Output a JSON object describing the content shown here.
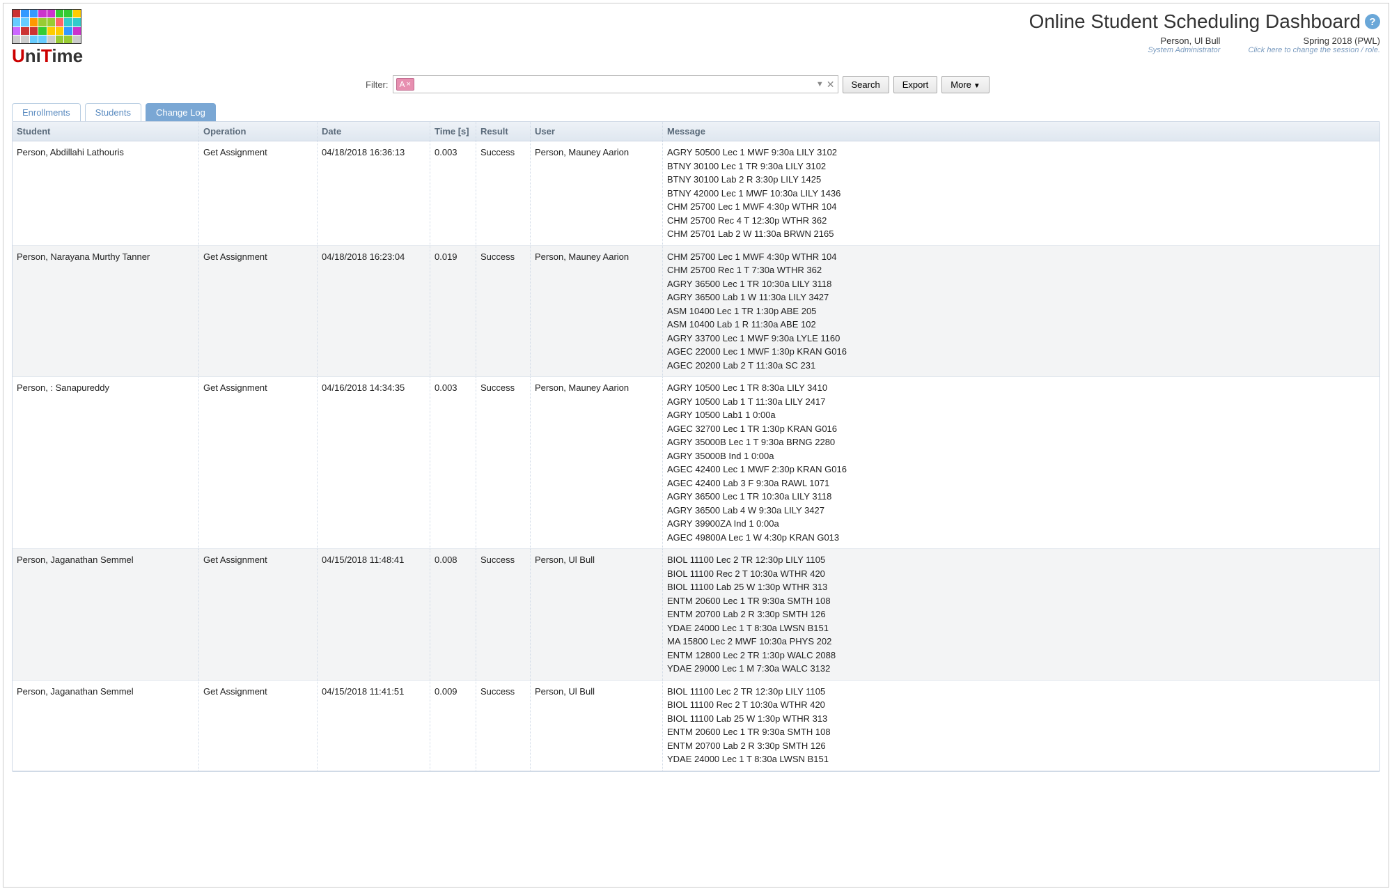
{
  "header": {
    "page_title": "Online Student Scheduling Dashboard",
    "user_name": "Person, Ul Bull",
    "user_role": "System Administrator",
    "session": "Spring 2018 (PWL)",
    "session_hint": "Click here to change the session / role."
  },
  "filter": {
    "label": "Filter:",
    "chip_label": "A",
    "search_btn": "Search",
    "export_btn": "Export",
    "more_btn": "More"
  },
  "tabs": {
    "enrollments": "Enrollments",
    "students": "Students",
    "change_log": "Change Log"
  },
  "columns": {
    "student": "Student",
    "operation": "Operation",
    "date": "Date",
    "time": "Time [s]",
    "result": "Result",
    "user": "User",
    "message": "Message"
  },
  "rows": [
    {
      "student": "Person, Abdillahi Lathouris",
      "operation": "Get Assignment",
      "date": "04/18/2018 16:36:13",
      "time": "0.003",
      "result": "Success",
      "user": "Person, Mauney Aarion",
      "messages": [
        "AGRY 50500 Lec 1 MWF 9:30a LILY 3102",
        "BTNY 30100 Lec 1 TR 9:30a LILY 3102",
        "BTNY 30100 Lab 2 R 3:30p LILY 1425",
        "BTNY 42000 Lec 1 MWF 10:30a LILY 1436",
        "CHM 25700 Lec 1 MWF 4:30p WTHR 104",
        "CHM 25700 Rec 4 T 12:30p WTHR 362",
        "CHM 25701 Lab 2 W 11:30a BRWN 2165"
      ]
    },
    {
      "student": "Person, Narayana Murthy Tanner",
      "operation": "Get Assignment",
      "date": "04/18/2018 16:23:04",
      "time": "0.019",
      "result": "Success",
      "user": "Person, Mauney Aarion",
      "messages": [
        "CHM 25700 Lec 1 MWF 4:30p WTHR 104",
        "CHM 25700 Rec 1 T 7:30a WTHR 362",
        "AGRY 36500 Lec 1 TR 10:30a LILY 3118",
        "AGRY 36500 Lab 1 W 11:30a LILY 3427",
        "ASM 10400 Lec 1 TR 1:30p ABE 205",
        "ASM 10400 Lab 1 R 11:30a ABE 102",
        "AGRY 33700 Lec 1 MWF 9:30a LYLE 1160",
        "AGEC 22000 Lec 1 MWF 1:30p KRAN G016",
        "AGEC 20200 Lab 2 T 11:30a SC 231"
      ]
    },
    {
      "student": "Person, : Sanapureddy",
      "operation": "Get Assignment",
      "date": "04/16/2018 14:34:35",
      "time": "0.003",
      "result": "Success",
      "user": "Person, Mauney Aarion",
      "messages": [
        "AGRY 10500 Lec 1 TR 8:30a LILY 3410",
        "AGRY 10500 Lab 1 T 11:30a LILY 2417",
        "AGRY 10500 Lab1 1 0:00a",
        "AGEC 32700 Lec 1 TR 1:30p KRAN G016",
        "AGRY 35000B Lec 1 T 9:30a BRNG 2280",
        "AGRY 35000B Ind 1 0:00a",
        "AGEC 42400 Lec 1 MWF 2:30p KRAN G016",
        "AGEC 42400 Lab 3 F 9:30a RAWL 1071",
        "AGRY 36500 Lec 1 TR 10:30a LILY 3118",
        "AGRY 36500 Lab 4 W 9:30a LILY 3427",
        "AGRY 39900ZA Ind 1 0:00a",
        "AGEC 49800A Lec 1 W 4:30p KRAN G013"
      ]
    },
    {
      "student": "Person, Jaganathan Semmel",
      "operation": "Get Assignment",
      "date": "04/15/2018 11:48:41",
      "time": "0.008",
      "result": "Success",
      "user": "Person, Ul Bull",
      "messages": [
        "BIOL 11100 Lec 2 TR 12:30p LILY 1105",
        "BIOL 11100 Rec 2 T 10:30a WTHR 420",
        "BIOL 11100 Lab 25 W 1:30p WTHR 313",
        "ENTM 20600 Lec 1 TR 9:30a SMTH 108",
        "ENTM 20700 Lab 2 R 3:30p SMTH 126",
        "YDAE 24000 Lec 1 T 8:30a LWSN B151",
        "MA 15800 Lec 2 MWF 10:30a PHYS 202",
        "ENTM 12800 Lec 2 TR 1:30p WALC 2088",
        "YDAE 29000 Lec 1 M 7:30a WALC 3132"
      ]
    },
    {
      "student": "Person, Jaganathan Semmel",
      "operation": "Get Assignment",
      "date": "04/15/2018 11:41:51",
      "time": "0.009",
      "result": "Success",
      "user": "Person, Ul Bull",
      "messages": [
        "BIOL 11100 Lec 2 TR 12:30p LILY 1105",
        "BIOL 11100 Rec 2 T 10:30a WTHR 420",
        "BIOL 11100 Lab 25 W 1:30p WTHR 313",
        "ENTM 20600 Lec 1 TR 9:30a SMTH 108",
        "ENTM 20700 Lab 2 R 3:30p SMTH 126",
        "YDAE 24000 Lec 1 T 8:30a LWSN B151"
      ]
    }
  ]
}
